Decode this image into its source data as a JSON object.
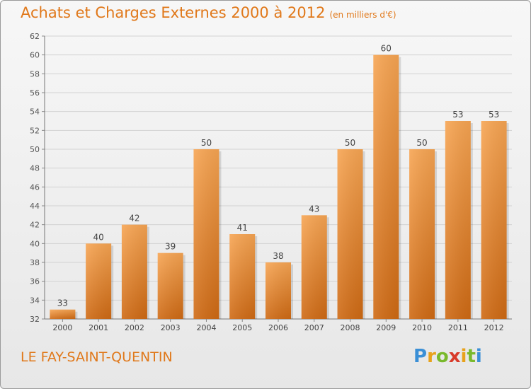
{
  "header": {
    "title": "Achats et Charges Externes 2000 à 2012",
    "subtitle": "(en milliers d'€)"
  },
  "footer": {
    "town": "LE FAY-SAINT-QUENTIN",
    "logo_text": "Proxiti"
  },
  "colors": {
    "accent": "#e0781a",
    "bar_light": "#f7a553",
    "bar_dark": "#cf6a14"
  },
  "chart_data": {
    "type": "bar",
    "title": "Achats et Charges Externes 2000 à 2012",
    "subtitle": "(en milliers d'€)",
    "categories": [
      "2000",
      "2001",
      "2002",
      "2003",
      "2004",
      "2005",
      "2006",
      "2007",
      "2008",
      "2009",
      "2010",
      "2011",
      "2012"
    ],
    "values": [
      33,
      40,
      42,
      39,
      50,
      41,
      38,
      43,
      50,
      60,
      50,
      53,
      53
    ],
    "ylim": [
      32,
      62
    ],
    "yticks": [
      32,
      34,
      36,
      38,
      40,
      42,
      44,
      46,
      48,
      50,
      52,
      54,
      56,
      58,
      60,
      62
    ],
    "grid": true,
    "xlabel": "",
    "ylabel": ""
  }
}
